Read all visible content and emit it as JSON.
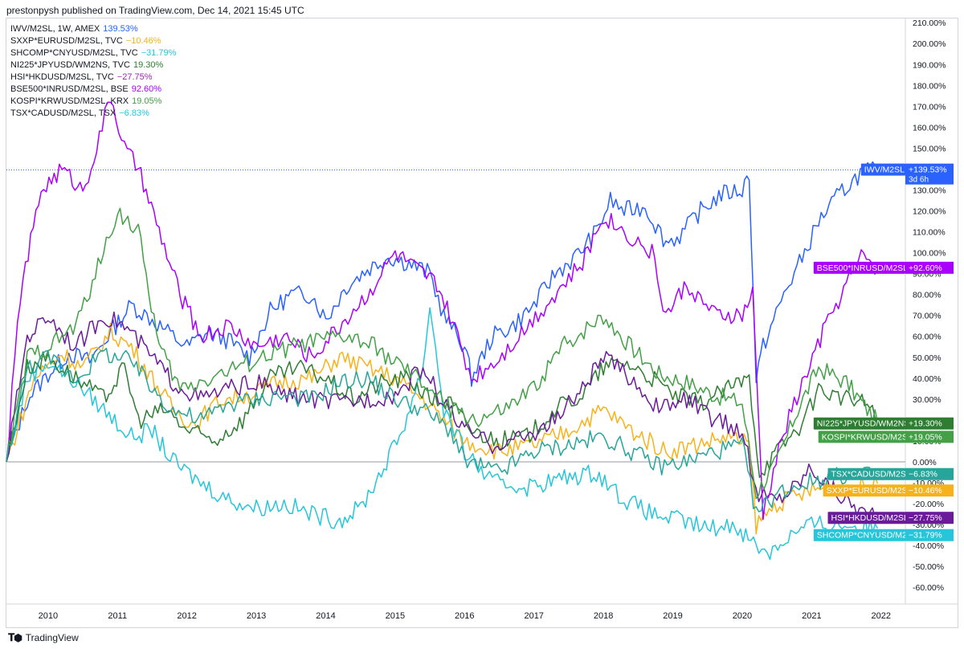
{
  "header": {
    "published": "prestonpysh published on TradingView.com, Dec 14, 2021 15:45 UTC"
  },
  "footer": {
    "brand": "TradingView",
    "logo": "tradingview-logo-icon"
  },
  "legend": [
    {
      "label": "IWV/M2SL, 1W, AMEX",
      "value": "139.53%",
      "color": "#2962ff"
    },
    {
      "label": "SXXP*EURUSD/M2SL, TVC",
      "value": "−10.46%",
      "color": "#f7b21b"
    },
    {
      "label": "SHCOMP*CNYUSD/M2SL, TVC",
      "value": "−31.79%",
      "color": "#26c6da"
    },
    {
      "label": "NI225*JPYUSD/WM2NS, TVC",
      "value": "19.30%",
      "color": "#2e7d32"
    },
    {
      "label": "HSI*HKDUSD/M2SL, TVC",
      "value": "−27.75%",
      "color": "#9c27b0"
    },
    {
      "label": "BSE500*INRUSD/M2SL, BSE",
      "value": "92.60%",
      "color": "#aa00ff"
    },
    {
      "label": "KOSPI*KRWUSD/M2SL, KRX",
      "value": "19.05%",
      "color": "#43a047"
    },
    {
      "label": "TSX*CADUSD/M2SL, TSX",
      "value": "−6.83%",
      "color": "#26c6da"
    }
  ],
  "chart_data": {
    "type": "line",
    "y_unit": "%",
    "ylim": [
      -68,
      212
    ],
    "xlim": [
      2009.4,
      2022.35
    ],
    "y_ticks": [
      "210.00%",
      "200.00%",
      "190.00%",
      "180.00%",
      "170.00%",
      "160.00%",
      "150.00%",
      "140.00%",
      "130.00%",
      "120.00%",
      "110.00%",
      "100.00%",
      "90.00%",
      "80.00%",
      "70.00%",
      "60.00%",
      "50.00%",
      "40.00%",
      "30.00%",
      "20.00%",
      "10.00%",
      "0.00%",
      "-10.00%",
      "-20.00%",
      "-30.00%",
      "-40.00%",
      "-50.00%",
      "-60.00%"
    ],
    "y_tick_values": [
      210,
      200,
      190,
      180,
      170,
      160,
      150,
      140,
      130,
      120,
      110,
      100,
      90,
      80,
      70,
      60,
      50,
      40,
      30,
      20,
      10,
      0,
      -10,
      -20,
      -30,
      -40,
      -50,
      -60
    ],
    "x_ticks": [
      "2010",
      "2011",
      "2012",
      "2013",
      "2014",
      "2015",
      "2016",
      "2017",
      "2018",
      "2019",
      "2020",
      "2021",
      "2022"
    ],
    "x_tick_values": [
      2010,
      2011,
      2012,
      2013,
      2014,
      2015,
      2016,
      2017,
      2018,
      2019,
      2020,
      2021,
      2022
    ],
    "last_price_line": 139.53,
    "series": [
      {
        "name": "IWV/M2SL",
        "color": "#2962ff",
        "badge": "+139.53%",
        "badge_sub": "3d 6h",
        "x": [
          2009.4,
          2009.7,
          2010.0,
          2010.3,
          2010.6,
          2010.9,
          2011.2,
          2011.5,
          2011.8,
          2012.0,
          2012.3,
          2012.6,
          2012.9,
          2013.2,
          2013.5,
          2013.8,
          2014.0,
          2014.3,
          2014.6,
          2014.9,
          2015.2,
          2015.5,
          2015.7,
          2016.0,
          2016.1,
          2016.4,
          2016.7,
          2017.0,
          2017.3,
          2017.6,
          2017.9,
          2018.1,
          2018.3,
          2018.6,
          2018.9,
          2019.1,
          2019.4,
          2019.7,
          2020.0,
          2020.1,
          2020.2,
          2020.3,
          2020.6,
          2020.9,
          2021.1,
          2021.4,
          2021.7,
          2021.95
        ],
        "y": [
          0,
          30,
          42,
          52,
          48,
          62,
          75,
          68,
          60,
          55,
          62,
          58,
          50,
          72,
          80,
          80,
          68,
          84,
          92,
          98,
          95,
          90,
          70,
          55,
          40,
          60,
          65,
          75,
          90,
          98,
          110,
          125,
          120,
          122,
          105,
          108,
          120,
          128,
          130,
          138,
          40,
          55,
          80,
          100,
          115,
          128,
          138,
          139.53
        ]
      },
      {
        "name": "SXXP*EURUSD/M2SL",
        "color": "#f7b21b",
        "badge": "SXXP*EURUSD/M2SL",
        "badge_val": "−10.46%",
        "x": [
          2009.4,
          2009.8,
          2010.2,
          2010.5,
          2010.9,
          2011.2,
          2011.5,
          2011.8,
          2012.1,
          2012.5,
          2012.9,
          2013.3,
          2013.8,
          2014.2,
          2014.6,
          2015.0,
          2015.4,
          2015.7,
          2016.0,
          2016.5,
          2017.0,
          2017.5,
          2018.0,
          2018.4,
          2018.9,
          2019.3,
          2019.8,
          2020.1,
          2020.2,
          2020.5,
          2020.9,
          2021.2,
          2021.6,
          2021.95
        ],
        "y": [
          0,
          40,
          52,
          45,
          62,
          55,
          40,
          25,
          18,
          30,
          32,
          38,
          40,
          50,
          45,
          40,
          30,
          20,
          10,
          5,
          8,
          15,
          25,
          15,
          5,
          8,
          12,
          8,
          -30,
          -20,
          -15,
          -12,
          -12,
          -10.46
        ]
      },
      {
        "name": "SHCOMP*CNYUSD/M2SL",
        "color": "#26c6da",
        "badge": "SHCOMP*CNYUSD/M2SL",
        "badge_val": "−31.79%",
        "x": [
          2009.4,
          2009.7,
          2010.0,
          2010.4,
          2010.8,
          2011.2,
          2011.5,
          2011.8,
          2012.2,
          2012.6,
          2013.0,
          2013.4,
          2013.8,
          2014.2,
          2014.5,
          2014.8,
          2015.1,
          2015.4,
          2015.5,
          2015.7,
          2016.0,
          2016.4,
          2016.9,
          2017.4,
          2017.9,
          2018.3,
          2018.7,
          2019.1,
          2019.5,
          2019.9,
          2020.2,
          2020.4,
          2020.7,
          2021.0,
          2021.4,
          2021.7,
          2021.95
        ],
        "y": [
          0,
          40,
          48,
          38,
          25,
          12,
          15,
          0,
          -10,
          -18,
          -22,
          -20,
          -25,
          -28,
          -22,
          -5,
          15,
          45,
          75,
          25,
          5,
          -10,
          -12,
          -8,
          -5,
          -18,
          -25,
          -28,
          -32,
          -30,
          -40,
          -43,
          -35,
          -30,
          -30,
          -31,
          -31.79
        ]
      },
      {
        "name": "NI225*JPYUSD/WM2NS",
        "color": "#2e7d32",
        "badge": "NI225*JPYUSD/WM2NS",
        "badge_val": "+19.30%",
        "x": [
          2009.4,
          2009.7,
          2010.0,
          2010.4,
          2010.8,
          2011.1,
          2011.3,
          2011.7,
          2012.0,
          2012.4,
          2012.8,
          2013.2,
          2013.6,
          2014.0,
          2014.4,
          2014.8,
          2015.2,
          2015.5,
          2015.8,
          2016.1,
          2016.5,
          2016.9,
          2017.3,
          2017.7,
          2018.0,
          2018.3,
          2018.7,
          2019.0,
          2019.4,
          2019.8,
          2020.1,
          2020.25,
          2020.5,
          2020.9,
          2021.1,
          2021.5,
          2021.8,
          2021.95
        ],
        "y": [
          0,
          45,
          50,
          40,
          30,
          45,
          20,
          25,
          15,
          10,
          20,
          40,
          45,
          40,
          30,
          38,
          40,
          30,
          28,
          15,
          10,
          12,
          25,
          32,
          45,
          48,
          40,
          32,
          28,
          35,
          40,
          -5,
          5,
          20,
          35,
          30,
          28,
          19.3
        ]
      },
      {
        "name": "HSI*HKDUSD/M2SL",
        "color": "#6a1b9a",
        "badge": "HSI*HKDUSD/M2SL",
        "badge_val": "−27.75%",
        "x": [
          2009.4,
          2009.7,
          2010.0,
          2010.4,
          2010.8,
          2011.1,
          2011.5,
          2011.8,
          2012.2,
          2012.6,
          2013.0,
          2013.4,
          2013.8,
          2014.2,
          2014.6,
          2015.0,
          2015.4,
          2015.7,
          2016.0,
          2016.4,
          2016.9,
          2017.3,
          2017.7,
          2018.0,
          2018.4,
          2018.8,
          2019.2,
          2019.6,
          2020.0,
          2020.2,
          2020.5,
          2020.8,
          2021.0,
          2021.2,
          2021.5,
          2021.8,
          2021.95
        ],
        "y": [
          0,
          60,
          70,
          55,
          70,
          65,
          50,
          38,
          30,
          35,
          38,
          32,
          30,
          28,
          30,
          32,
          45,
          28,
          15,
          8,
          12,
          20,
          35,
          50,
          40,
          25,
          30,
          20,
          15,
          -15,
          -18,
          -10,
          -2,
          -10,
          -18,
          -25,
          -27.75
        ]
      },
      {
        "name": "BSE500*INRUSD/M2SL",
        "color": "#aa00ff",
        "badge": "BSE500*INRUSD/M2SL",
        "badge_val": "+92.60%",
        "x": [
          2009.4,
          2009.6,
          2009.9,
          2010.2,
          2010.5,
          2010.7,
          2010.9,
          2011.1,
          2011.3,
          2011.6,
          2011.9,
          2012.2,
          2012.6,
          2013.0,
          2013.4,
          2013.8,
          2014.2,
          2014.6,
          2015.0,
          2015.3,
          2015.6,
          2015.9,
          2016.1,
          2016.5,
          2016.9,
          2017.3,
          2017.7,
          2018.0,
          2018.3,
          2018.7,
          2018.9,
          2019.2,
          2019.6,
          2020.0,
          2020.15,
          2020.3,
          2020.6,
          2020.9,
          2021.2,
          2021.5,
          2021.75,
          2021.95
        ],
        "y": [
          0,
          80,
          130,
          140,
          130,
          150,
          175,
          150,
          140,
          110,
          80,
          60,
          65,
          55,
          60,
          50,
          65,
          80,
          100,
          92,
          85,
          60,
          40,
          50,
          65,
          80,
          95,
          118,
          110,
          100,
          70,
          85,
          70,
          70,
          80,
          -25,
          15,
          40,
          65,
          85,
          100,
          92.6
        ]
      },
      {
        "name": "KOSPI*KRWUSD/M2SL",
        "color": "#43a047",
        "badge": "KOSPI*KRWUSD/M2SL",
        "badge_val": "+19.05%",
        "x": [
          2009.4,
          2009.7,
          2010.0,
          2010.4,
          2010.8,
          2011.0,
          2011.3,
          2011.6,
          2011.9,
          2012.3,
          2012.7,
          2013.1,
          2013.5,
          2013.9,
          2014.3,
          2014.7,
          2015.1,
          2015.5,
          2015.8,
          2016.2,
          2016.6,
          2017.0,
          2017.4,
          2017.8,
          2018.0,
          2018.4,
          2018.8,
          2019.2,
          2019.6,
          2020.0,
          2020.2,
          2020.5,
          2020.8,
          2021.1,
          2021.5,
          2021.8,
          2021.95
        ],
        "y": [
          0,
          50,
          55,
          65,
          100,
          120,
          110,
          55,
          35,
          40,
          45,
          50,
          55,
          58,
          60,
          55,
          45,
          35,
          25,
          20,
          25,
          35,
          55,
          65,
          70,
          55,
          42,
          38,
          32,
          28,
          -15,
          0,
          25,
          45,
          38,
          25,
          19.05
        ]
      },
      {
        "name": "TSX*CADUSD/M2SL",
        "color": "#26a69a",
        "badge": "TSX*CADUSD/M2SL",
        "badge_val": "−6.83%",
        "x": [
          2009.4,
          2009.7,
          2010.0,
          2010.4,
          2010.8,
          2011.2,
          2011.5,
          2011.8,
          2012.2,
          2012.6,
          2013.0,
          2013.4,
          2013.8,
          2014.2,
          2014.6,
          2015.0,
          2015.4,
          2015.8,
          2016.0,
          2016.5,
          2017.0,
          2017.5,
          2018.0,
          2018.4,
          2018.8,
          2019.2,
          2019.6,
          2020.0,
          2020.2,
          2020.5,
          2020.9,
          2021.2,
          2021.6,
          2021.95
        ],
        "y": [
          0,
          45,
          50,
          40,
          52,
          48,
          35,
          25,
          20,
          28,
          30,
          32,
          30,
          38,
          40,
          30,
          25,
          15,
          0,
          -5,
          5,
          8,
          12,
          5,
          -2,
          0,
          5,
          8,
          -25,
          -15,
          -10,
          -8,
          -6,
          -6.83
        ]
      }
    ]
  }
}
